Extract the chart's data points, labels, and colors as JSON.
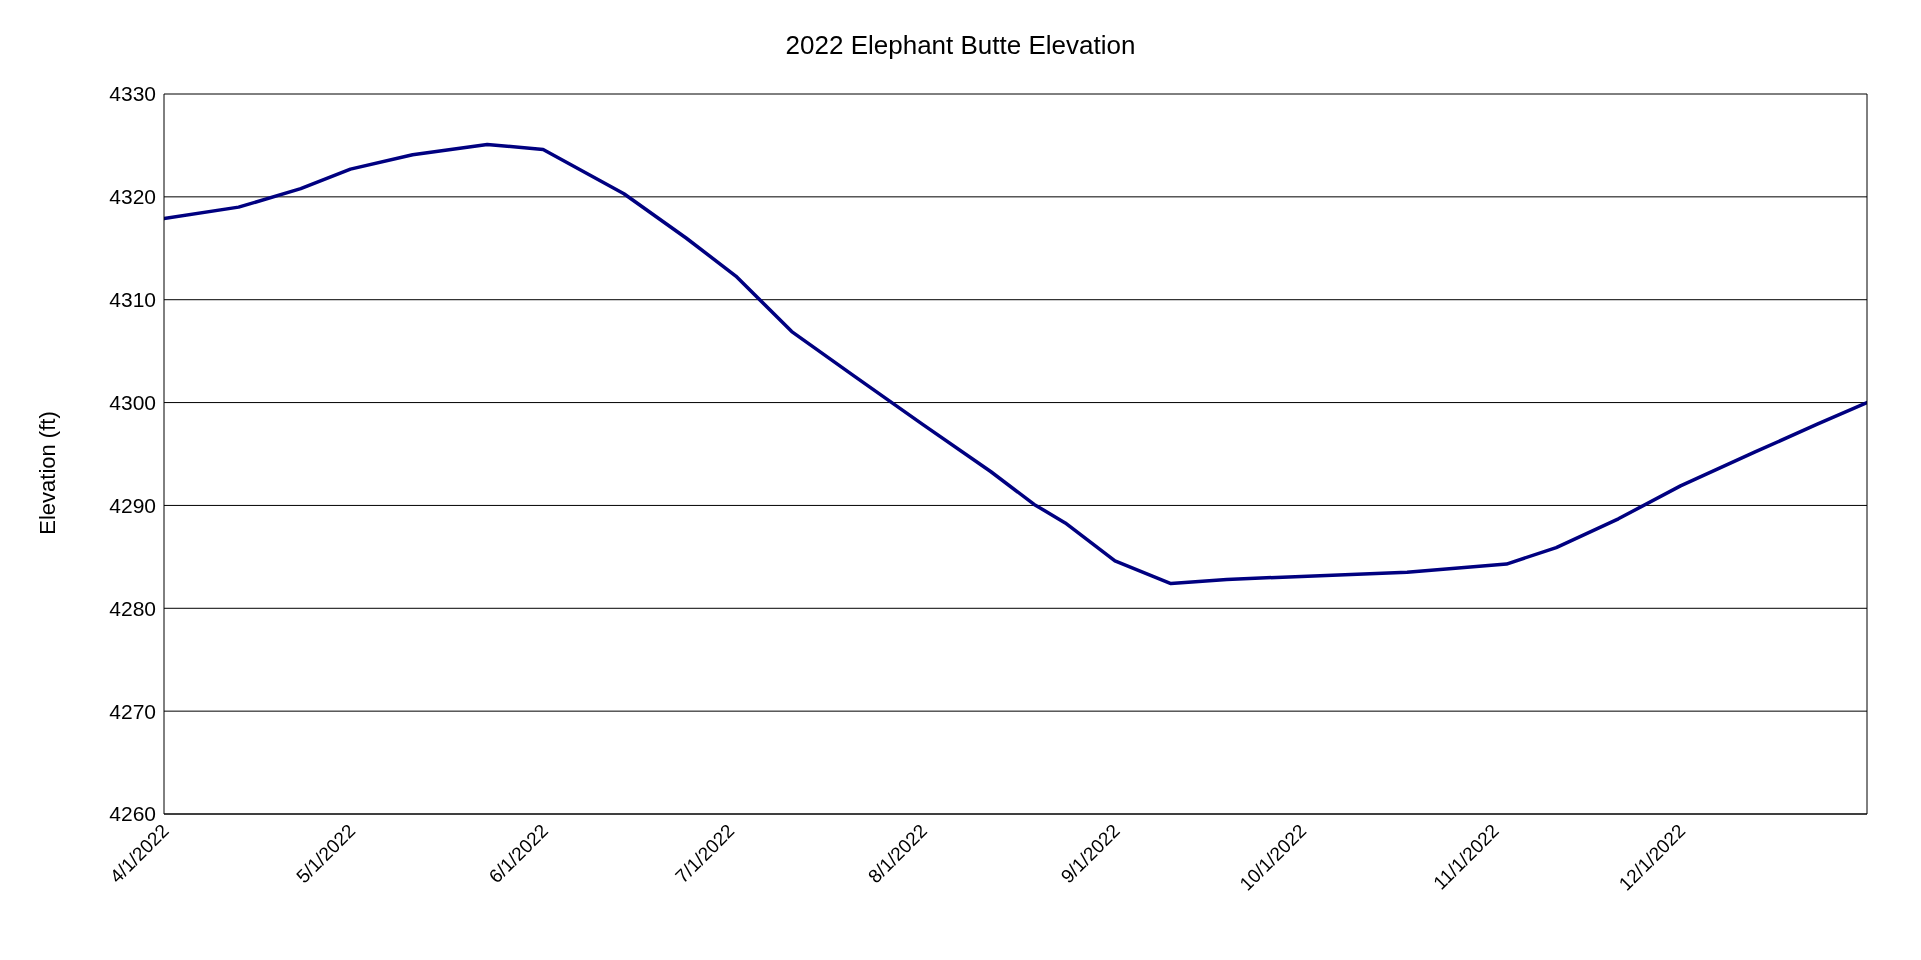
{
  "chart_data": {
    "type": "line",
    "title": "2022 Elephant Butte Elevation",
    "ylabel": "Elevation (ft)",
    "x": [
      "2022-04-01",
      "2022-04-13",
      "2022-04-23",
      "2022-05-01",
      "2022-05-11",
      "2022-05-23",
      "2022-06-01",
      "2022-06-14",
      "2022-06-24",
      "2022-07-02",
      "2022-07-11",
      "2022-07-21",
      "2022-08-01",
      "2022-08-12",
      "2022-08-19",
      "2022-08-24",
      "2022-09-01",
      "2022-09-10",
      "2022-09-19",
      "2022-10-01",
      "2022-10-18",
      "2022-11-03",
      "2022-11-11",
      "2022-11-21",
      "2022-12-01",
      "2022-12-13",
      "2022-12-23",
      "2022-12-31"
    ],
    "series": [
      {
        "color": "#000080",
        "values": [
          4317.9,
          4319.0,
          4320.8,
          4322.7,
          4324.1,
          4325.1,
          4324.6,
          4320.3,
          4316.0,
          4312.3,
          4306.9,
          4302.6,
          4297.9,
          4293.3,
          4290.1,
          4288.3,
          4284.6,
          4282.4,
          4282.8,
          4283.1,
          4283.5,
          4284.3,
          4285.9,
          4288.7,
          4291.9,
          4295.2,
          4297.9,
          4300.0
        ]
      }
    ],
    "xlim": [
      "2022-04-01",
      "2022-12-31"
    ],
    "xticks": [
      {
        "value": "2022-04-01",
        "label": "4/1/2022"
      },
      {
        "value": "2022-05-01",
        "label": "5/1/2022"
      },
      {
        "value": "2022-06-01",
        "label": "6/1/2022"
      },
      {
        "value": "2022-07-01",
        "label": "7/1/2022"
      },
      {
        "value": "2022-08-01",
        "label": "8/1/2022"
      },
      {
        "value": "2022-09-01",
        "label": "9/1/2022"
      },
      {
        "value": "2022-10-01",
        "label": "10/1/2022"
      },
      {
        "value": "2022-11-01",
        "label": "11/1/2022"
      },
      {
        "value": "2022-12-01",
        "label": "12/1/2022"
      }
    ],
    "ylim": [
      4260,
      4330
    ],
    "yticks": [
      4260,
      4270,
      4280,
      4290,
      4300,
      4310,
      4320,
      4330
    ],
    "grid": "y",
    "legend": false,
    "marker": "none",
    "line_style": "solid"
  }
}
